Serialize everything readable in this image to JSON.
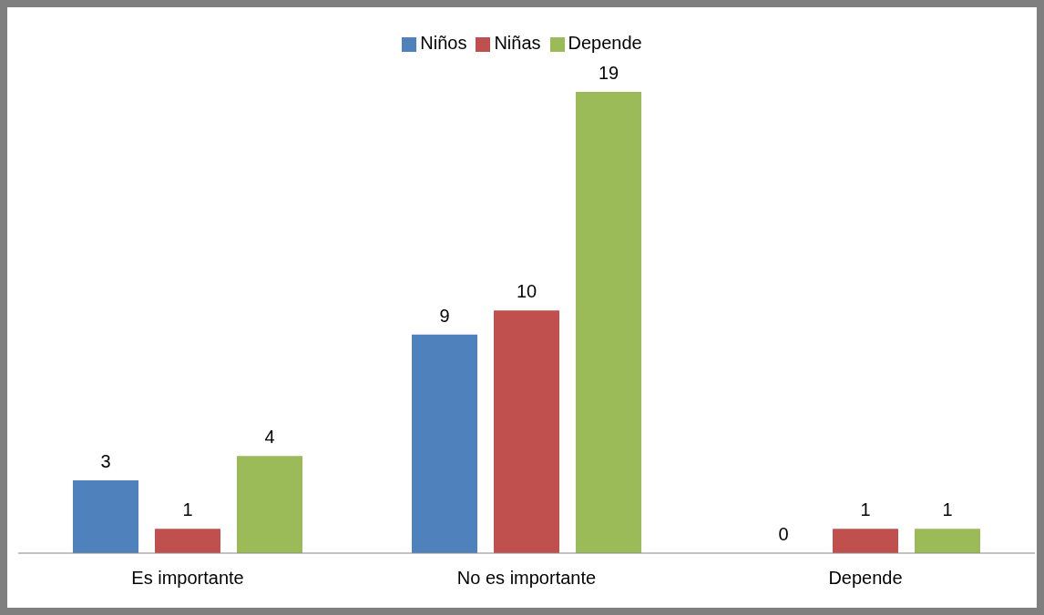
{
  "chart_data": {
    "type": "bar",
    "categories": [
      "Es importante",
      "No es importante",
      "Depende"
    ],
    "series": [
      {
        "name": "Niños",
        "color": "#4f81bd",
        "values": [
          3,
          9,
          0
        ]
      },
      {
        "name": "Niñas",
        "color": "#c0504d",
        "values": [
          1,
          10,
          1
        ]
      },
      {
        "name": "Depende",
        "color": "#9bbb59",
        "values": [
          4,
          19,
          1
        ]
      }
    ],
    "data_labels": true,
    "legend": "top"
  }
}
